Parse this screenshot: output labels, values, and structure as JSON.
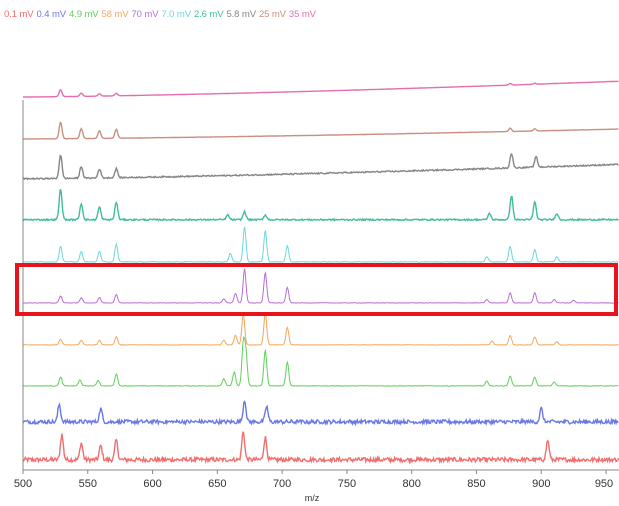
{
  "chart_data": {
    "type": "line",
    "subtype": "stacked mass spectra (waterfall)",
    "xlabel": "m/z",
    "xlim": [
      500,
      960
    ],
    "xticks": [
      500,
      550,
      600,
      650,
      700,
      750,
      800,
      850,
      900,
      950
    ],
    "legend_position": "top-left",
    "grid": false,
    "highlight": {
      "series": "7.0 mV",
      "color": "#e8141b"
    },
    "series": [
      {
        "name": "0.1 mV",
        "color": "#f26d6d",
        "noise": 0.1,
        "drift": 0.0,
        "peaks": [
          [
            530,
            0.9
          ],
          [
            545,
            0.6
          ],
          [
            560,
            0.5
          ],
          [
            572,
            0.7
          ],
          [
            670,
            1.0
          ],
          [
            687,
            0.8
          ],
          [
            905,
            0.7
          ]
        ]
      },
      {
        "name": "0.4 mV",
        "color": "#6a78e6",
        "noise": 0.12,
        "drift": 0.0,
        "peaks": [
          [
            528,
            0.8
          ],
          [
            560,
            0.6
          ],
          [
            671,
            1.0
          ],
          [
            688,
            0.7
          ],
          [
            900,
            0.6
          ]
        ]
      },
      {
        "name": "4.9 mV",
        "color": "#5fd05a",
        "noise": 0.015,
        "drift": 0.0,
        "peaks": [
          [
            529,
            0.22
          ],
          [
            544,
            0.15
          ],
          [
            558,
            0.14
          ],
          [
            572,
            0.3
          ],
          [
            655,
            0.18
          ],
          [
            663,
            0.35
          ],
          [
            670,
            1.0
          ],
          [
            672,
            0.8
          ],
          [
            687,
            0.9
          ],
          [
            704,
            0.6
          ],
          [
            858,
            0.12
          ],
          [
            876,
            0.25
          ],
          [
            895,
            0.22
          ],
          [
            910,
            0.1
          ]
        ]
      },
      {
        "name": "58 mV",
        "color": "#f5a65b",
        "noise": 0.015,
        "drift": 0.0,
        "peaks": [
          [
            529,
            0.18
          ],
          [
            545,
            0.14
          ],
          [
            559,
            0.14
          ],
          [
            572,
            0.25
          ],
          [
            655,
            0.15
          ],
          [
            664,
            0.3
          ],
          [
            670,
            0.95
          ],
          [
            687,
            1.0
          ],
          [
            704,
            0.55
          ],
          [
            862,
            0.12
          ],
          [
            876,
            0.3
          ],
          [
            895,
            0.25
          ],
          [
            912,
            0.1
          ]
        ]
      },
      {
        "name": "70 mV",
        "color": "#b86fd1",
        "noise": 0.012,
        "drift": 0.0,
        "peaks": [
          [
            529,
            0.2
          ],
          [
            545,
            0.15
          ],
          [
            559,
            0.16
          ],
          [
            572,
            0.25
          ],
          [
            655,
            0.12
          ],
          [
            664,
            0.28
          ],
          [
            671,
            1.0
          ],
          [
            687,
            0.9
          ],
          [
            704,
            0.45
          ],
          [
            858,
            0.1
          ],
          [
            876,
            0.3
          ],
          [
            895,
            0.3
          ],
          [
            910,
            0.1
          ],
          [
            925,
            0.08
          ]
        ]
      },
      {
        "name": "7.0 mV",
        "color": "#6dd6dc",
        "noise": 0.02,
        "drift": 0.0,
        "peaks": [
          [
            529,
            0.45
          ],
          [
            545,
            0.3
          ],
          [
            559,
            0.3
          ],
          [
            572,
            0.5
          ],
          [
            660,
            0.25
          ],
          [
            671,
            1.0
          ],
          [
            687,
            0.9
          ],
          [
            704,
            0.45
          ],
          [
            858,
            0.15
          ],
          [
            876,
            0.45
          ],
          [
            895,
            0.35
          ],
          [
            912,
            0.15
          ]
        ]
      },
      {
        "name": "2.6 mV",
        "color": "#3fbd9c",
        "noise": 0.045,
        "drift": 0.0,
        "peaks": [
          [
            529,
            0.95
          ],
          [
            545,
            0.5
          ],
          [
            559,
            0.4
          ],
          [
            572,
            0.55
          ],
          [
            658,
            0.15
          ],
          [
            671,
            0.25
          ],
          [
            687,
            0.15
          ],
          [
            860,
            0.2
          ],
          [
            877,
            0.75
          ],
          [
            895,
            0.55
          ],
          [
            912,
            0.2
          ]
        ]
      },
      {
        "name": "5.8 mV",
        "color": "#858585",
        "noise": 0.05,
        "drift": 0.55,
        "peaks": [
          [
            529,
            0.9
          ],
          [
            545,
            0.45
          ],
          [
            559,
            0.35
          ],
          [
            572,
            0.35
          ],
          [
            877,
            0.55
          ],
          [
            896,
            0.4
          ]
        ]
      },
      {
        "name": "25 mV",
        "color": "#c98f80",
        "noise": 0.01,
        "drift": 0.45,
        "peaks": [
          [
            529,
            0.75
          ],
          [
            545,
            0.45
          ],
          [
            559,
            0.35
          ],
          [
            572,
            0.4
          ],
          [
            876,
            0.15
          ],
          [
            895,
            0.1
          ]
        ]
      },
      {
        "name": "35 mV",
        "color": "#e36fae",
        "noise": 0.008,
        "drift": 1.25,
        "peaks": [
          [
            529,
            0.55
          ],
          [
            545,
            0.25
          ],
          [
            559,
            0.18
          ],
          [
            572,
            0.2
          ],
          [
            876,
            0.12
          ],
          [
            895,
            0.08
          ]
        ]
      }
    ]
  }
}
